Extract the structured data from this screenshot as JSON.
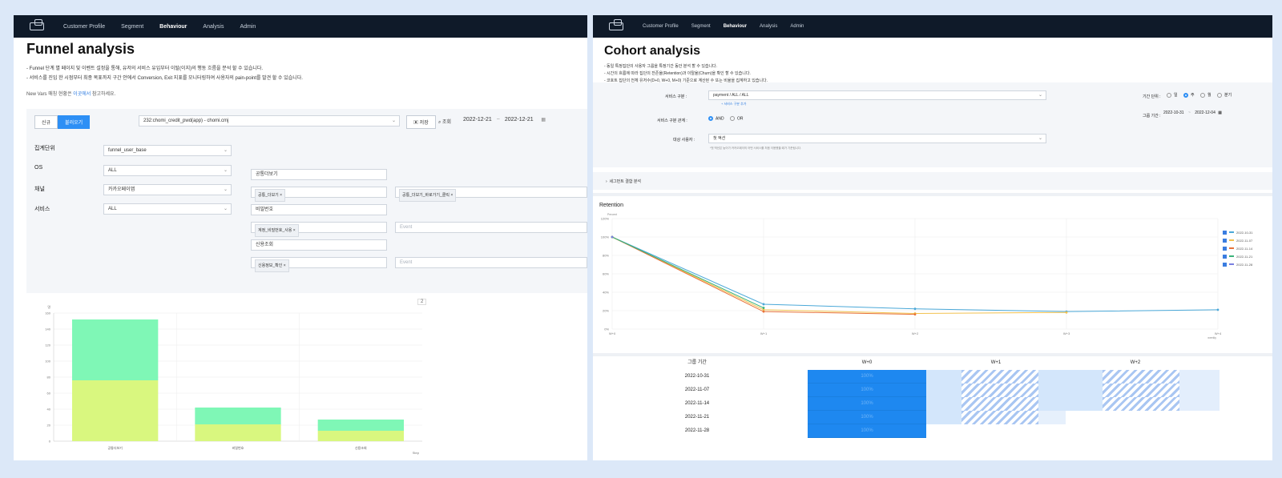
{
  "funnel": {
    "nav": {
      "items": [
        "Customer Profile",
        "Segment",
        "Behaviour",
        "Analysis",
        "Admin"
      ],
      "active": "Behaviour"
    },
    "title": "Funnel analysis",
    "desc": [
      "- Funnel 단계 별 페이지 및 이벤트 설정을 통해, 유저의 서비스 유입부터 이탈(이지)의 행동 흐름을 분석 할 수 있습니다.",
      "- 서비스를 진입 한 시점부터 최종 목표까지 구간 안에서 Conversion, Exit 지표를 모니터링하여 사용자의 pain-point를 발견 할 수 있습니다."
    ],
    "note_prefix": "New Vars 매칭 현황은",
    "note_link": "이곳에서",
    "note_suffix": "참고하세요.",
    "btn_new": "신규",
    "btn_load": "불러오기",
    "service_select": "232:chomi_credit_pwd(app) - chomi.cmj",
    "btn_save": "저장",
    "btn_search": "조회",
    "date_from": "2022-12-21",
    "date_sep": "~",
    "date_to": "2022-12-21",
    "filters": [
      {
        "label": "집계단위",
        "value": "funnel_user_base"
      },
      {
        "label": "OS",
        "value": "ALL"
      },
      {
        "label": "채널",
        "value": "카카오페이앱"
      },
      {
        "label": "서비스",
        "value": "ALL"
      }
    ],
    "steps": [
      {
        "name": "공통더보기",
        "chips": [
          "공통_더보기"
        ],
        "extra_chip": "공통_더보기_바로가기_클릭"
      },
      {
        "name": "비밀번호",
        "chips": [
          "계정_비밀번호_사용"
        ],
        "placeholder": "Event"
      },
      {
        "name": "신용조회",
        "chips": [
          "신용정보_확인"
        ],
        "placeholder": "Event"
      }
    ],
    "step_badge": "2",
    "chart_data": {
      "type": "bar",
      "categories": [
        "공통더보기",
        "비밀번호",
        "신용조회"
      ],
      "series": [
        {
          "values": [
            76,
            21,
            13
          ],
          "color": "#d9f77f"
        },
        {
          "values": [
            76,
            21,
            14
          ],
          "color": "#7ff7b6"
        }
      ],
      "ylim": [
        0,
        160
      ],
      "yticks": [
        0,
        20,
        40,
        60,
        80,
        100,
        120,
        140,
        160
      ],
      "ylabel": "명",
      "xlabel": "Step"
    }
  },
  "cohort": {
    "nav": {
      "items": [
        "Customer Profile",
        "Segment",
        "Behaviour",
        "Analysis",
        "Admin"
      ],
      "active": "Behaviour"
    },
    "title": "Cohort analysis",
    "desc": [
      "- 동일 특정집단의 사용자 그룹을 특정기간 동안 분석 할 수 있습니다.",
      "- 시간의 흐름에 따라 집단의 잔존율(Retention)과 이탈율(Churn)을 확인 할 수 있습니다.",
      "- 코호트 집단의 전체 유저수(D+0, W+0, M+0) 기준으로 계산된 수 또는 비율을 집계하고 있습니다."
    ],
    "service_label": "서비스 구분 :",
    "service_value": "payment / ALL / ALL",
    "add_service": "+ 서비스 구분 추가",
    "condition_label": "서비스 구분 관계 :",
    "cond_and": "AND",
    "cond_or": "OR",
    "target_label": "대상 사용자 :",
    "target_value": "첫 액션",
    "target_hint": "*첫 액션은 늦어가 카카오페이의 어떤 서비스를 처음 이용했을 때가 기준됩니다.",
    "period_label": "기간 단위 :",
    "period_options": [
      "일",
      "주",
      "월",
      "분기"
    ],
    "period_selected": "주",
    "group_label": "그룹 기간 :",
    "group_from": "2022-10-31",
    "group_sep": "~",
    "group_to": "2022-12-04",
    "segment_toggle": "세그먼트 결합 분석",
    "chart_title": "Retention",
    "chart_data": {
      "type": "line",
      "x": [
        "W+0",
        "W+1",
        "W+2",
        "W+3",
        "W+4"
      ],
      "ylim": [
        0,
        120
      ],
      "yticks": [
        0,
        20,
        40,
        60,
        80,
        100,
        120
      ],
      "yunit": "%",
      "ylabel": "Percent",
      "xlabel": "weekly",
      "series": [
        {
          "name": "2022-10-31",
          "color": "#4aa8d8",
          "values": [
            100,
            27,
            22,
            19,
            21
          ]
        },
        {
          "name": "2022-11-07",
          "color": "#f2c14e",
          "values": [
            100,
            21,
            17,
            18,
            null
          ]
        },
        {
          "name": "2022-11-14",
          "color": "#e8733a",
          "values": [
            100,
            19,
            16,
            null,
            null
          ]
        },
        {
          "name": "2022-11-21",
          "color": "#3bb37a",
          "values": [
            100,
            23,
            null,
            null,
            null
          ]
        },
        {
          "name": "2022-11-28",
          "color": "#7a7fe0",
          "values": [
            100,
            null,
            null,
            null,
            null
          ]
        }
      ]
    },
    "table": {
      "group_header": "그룹 기간",
      "headers": [
        "W+0",
        "W+1",
        "W+2"
      ],
      "rows": [
        "2022-10-31",
        "2022-11-07",
        "2022-11-14",
        "2022-11-21",
        "2022-11-28"
      ],
      "w0_value": "100%"
    }
  }
}
